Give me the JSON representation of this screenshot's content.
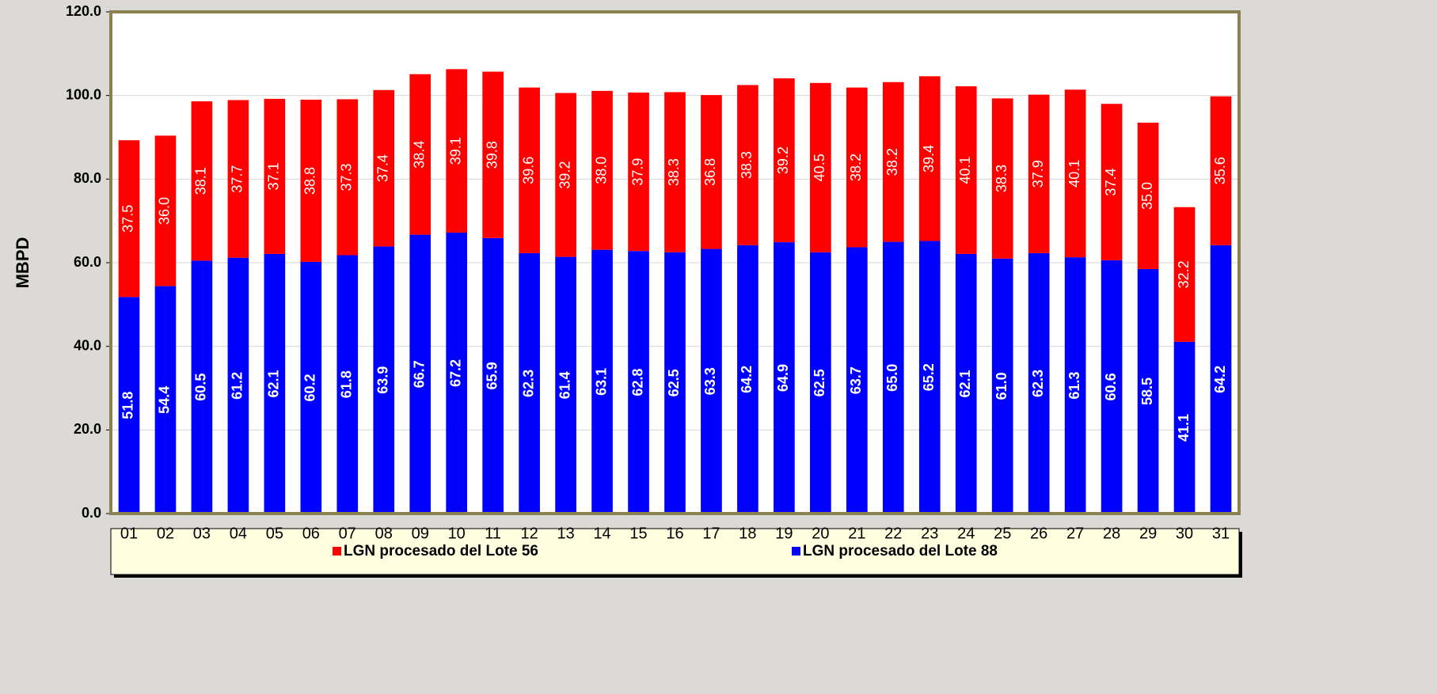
{
  "chart_data": {
    "type": "stacked-bar",
    "y_label": "MBPD",
    "categories": [
      "01",
      "02",
      "03",
      "04",
      "05",
      "06",
      "07",
      "08",
      "09",
      "10",
      "11",
      "12",
      "13",
      "14",
      "15",
      "16",
      "17",
      "18",
      "19",
      "20",
      "21",
      "22",
      "23",
      "24",
      "25",
      "26",
      "27",
      "28",
      "29",
      "30",
      "31"
    ],
    "series": [
      {
        "name": "LGN procesado del Lote 88",
        "color": "#0000ff",
        "values": [
          51.8,
          54.4,
          60.5,
          61.2,
          62.1,
          60.2,
          61.8,
          63.9,
          66.7,
          67.2,
          65.9,
          62.3,
          61.4,
          63.1,
          62.8,
          62.5,
          63.3,
          64.2,
          64.9,
          62.5,
          63.7,
          65.0,
          65.2,
          62.1,
          61.0,
          62.3,
          61.3,
          60.6,
          58.5,
          41.1,
          64.2
        ],
        "value_labels": [
          "51.8",
          "54.4",
          "60.5",
          "61.2",
          "62.1",
          "60.2",
          "61.8",
          "63.9",
          "66.7",
          "67.2",
          "65.9",
          "62.3",
          "61.4",
          "63.1",
          "62.8",
          "62.5",
          "63.3",
          "64.2",
          "64.9",
          "62.5",
          "63.7",
          "65.0",
          "65.2",
          "62.1",
          "61.0",
          "62.3",
          "61.3",
          "60.6",
          "58.5",
          "41.1",
          "64.2"
        ]
      },
      {
        "name": "LGN procesado del Lote 56",
        "color": "#ff0000",
        "values": [
          37.5,
          36.0,
          38.1,
          37.7,
          37.1,
          38.8,
          37.3,
          37.4,
          38.4,
          39.1,
          39.8,
          39.6,
          39.2,
          38.0,
          37.9,
          38.3,
          36.8,
          38.3,
          39.2,
          40.5,
          38.2,
          38.2,
          39.4,
          40.1,
          38.3,
          37.9,
          40.1,
          37.4,
          35.0,
          32.2,
          35.6
        ],
        "value_labels": [
          "37.5",
          "36.0",
          "38.1",
          "37.7",
          "37.1",
          "38.8",
          "37.3",
          "37.4",
          "38.4",
          "39.1",
          "39.8",
          "39.6",
          "39.2",
          "38.0",
          "37.9",
          "38.3",
          "36.8",
          "38.3",
          "39.2",
          "40.5",
          "38.2",
          "38.2",
          "39.4",
          "40.1",
          "38.3",
          "37.9",
          "40.1",
          "37.4",
          "35.0",
          "32.2",
          "35.6"
        ]
      }
    ],
    "ylim": [
      0,
      120
    ],
    "yticks": [
      {
        "value": 0,
        "label": "0.0"
      },
      {
        "value": 20,
        "label": "20.0"
      },
      {
        "value": 40,
        "label": "40.0"
      },
      {
        "value": 60,
        "label": "60.0"
      },
      {
        "value": 80,
        "label": "80.0"
      },
      {
        "value": 100,
        "label": "100.0"
      },
      {
        "value": 120,
        "label": "120.0"
      }
    ],
    "grid": true
  }
}
